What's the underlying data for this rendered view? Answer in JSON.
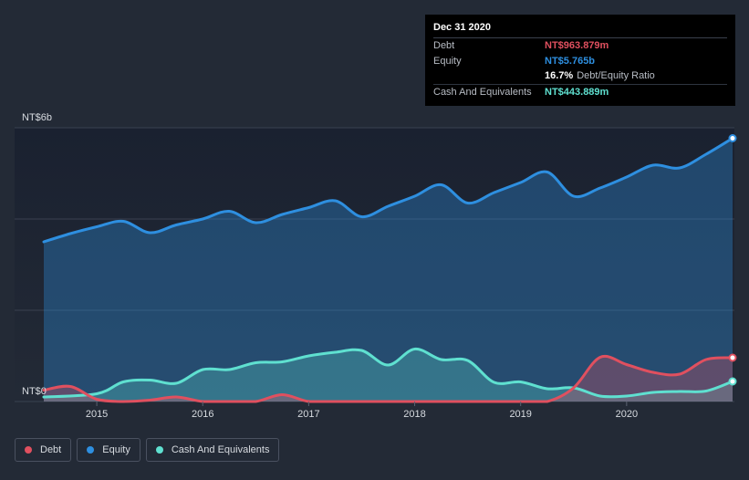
{
  "tooltip": {
    "date": "Dec 31 2020",
    "debt_label": "Debt",
    "debt_value": "NT$963.879m",
    "equity_label": "Equity",
    "equity_value": "NT$5.765b",
    "ratio_value": "16.7%",
    "ratio_label": "Debt/Equity Ratio",
    "cash_label": "Cash And Equivalents",
    "cash_value": "NT$443.889m"
  },
  "colors": {
    "debt": "#e0505f",
    "equity": "#2e8fe0",
    "cash": "#5fe0d0",
    "background": "#232a36"
  },
  "chart_data": {
    "type": "area",
    "y_top_label": "NT$6b",
    "y_bottom_label": "NT$0",
    "ylim": [
      0,
      6
    ],
    "xlim": [
      2014.5,
      2021.0
    ],
    "x_ticks": [
      "2015",
      "2016",
      "2017",
      "2018",
      "2019",
      "2020"
    ],
    "grid": true,
    "legend_position": "bottom-left",
    "series": [
      {
        "name": "Debt",
        "key": "debt",
        "points": [
          [
            2014.5,
            0.25
          ],
          [
            2014.75,
            0.33
          ],
          [
            2015.0,
            0.05
          ],
          [
            2015.25,
            0.0
          ],
          [
            2015.5,
            0.03
          ],
          [
            2015.75,
            0.1
          ],
          [
            2016.0,
            0.0
          ],
          [
            2016.25,
            0.0
          ],
          [
            2016.5,
            0.0
          ],
          [
            2016.75,
            0.15
          ],
          [
            2017.0,
            0.0
          ],
          [
            2017.25,
            0.0
          ],
          [
            2017.5,
            0.0
          ],
          [
            2018.0,
            0.0
          ],
          [
            2018.5,
            0.0
          ],
          [
            2019.0,
            0.0
          ],
          [
            2019.25,
            0.0
          ],
          [
            2019.5,
            0.3
          ],
          [
            2019.75,
            0.97
          ],
          [
            2020.0,
            0.81
          ],
          [
            2020.25,
            0.64
          ],
          [
            2020.5,
            0.6
          ],
          [
            2020.75,
            0.92
          ],
          [
            2021.0,
            0.96
          ]
        ]
      },
      {
        "name": "Equity",
        "key": "equity",
        "points": [
          [
            2014.5,
            3.5
          ],
          [
            2014.75,
            3.68
          ],
          [
            2015.0,
            3.83
          ],
          [
            2015.25,
            3.95
          ],
          [
            2015.5,
            3.7
          ],
          [
            2015.75,
            3.87
          ],
          [
            2016.0,
            4.0
          ],
          [
            2016.25,
            4.17
          ],
          [
            2016.5,
            3.92
          ],
          [
            2016.75,
            4.1
          ],
          [
            2017.0,
            4.25
          ],
          [
            2017.25,
            4.4
          ],
          [
            2017.5,
            4.05
          ],
          [
            2017.75,
            4.28
          ],
          [
            2018.0,
            4.5
          ],
          [
            2018.25,
            4.75
          ],
          [
            2018.5,
            4.35
          ],
          [
            2018.75,
            4.58
          ],
          [
            2019.0,
            4.8
          ],
          [
            2019.25,
            5.03
          ],
          [
            2019.5,
            4.5
          ],
          [
            2019.75,
            4.68
          ],
          [
            2020.0,
            4.92
          ],
          [
            2020.25,
            5.18
          ],
          [
            2020.5,
            5.12
          ],
          [
            2020.75,
            5.42
          ],
          [
            2021.0,
            5.77
          ]
        ]
      },
      {
        "name": "Cash And Equivalents",
        "key": "cash",
        "points": [
          [
            2014.5,
            0.1
          ],
          [
            2015.0,
            0.17
          ],
          [
            2015.25,
            0.43
          ],
          [
            2015.5,
            0.47
          ],
          [
            2015.75,
            0.4
          ],
          [
            2016.0,
            0.7
          ],
          [
            2016.25,
            0.7
          ],
          [
            2016.5,
            0.85
          ],
          [
            2016.75,
            0.87
          ],
          [
            2017.0,
            1.0
          ],
          [
            2017.25,
            1.08
          ],
          [
            2017.5,
            1.12
          ],
          [
            2017.75,
            0.8
          ],
          [
            2018.0,
            1.15
          ],
          [
            2018.25,
            0.92
          ],
          [
            2018.5,
            0.9
          ],
          [
            2018.75,
            0.42
          ],
          [
            2019.0,
            0.43
          ],
          [
            2019.25,
            0.28
          ],
          [
            2019.5,
            0.3
          ],
          [
            2019.75,
            0.12
          ],
          [
            2020.0,
            0.12
          ],
          [
            2020.25,
            0.2
          ],
          [
            2020.5,
            0.22
          ],
          [
            2020.75,
            0.23
          ],
          [
            2021.0,
            0.44
          ]
        ]
      }
    ]
  },
  "legend": {
    "items": [
      {
        "label": "Debt",
        "key": "debt"
      },
      {
        "label": "Equity",
        "key": "equity"
      },
      {
        "label": "Cash And Equivalents",
        "key": "cash"
      }
    ]
  }
}
